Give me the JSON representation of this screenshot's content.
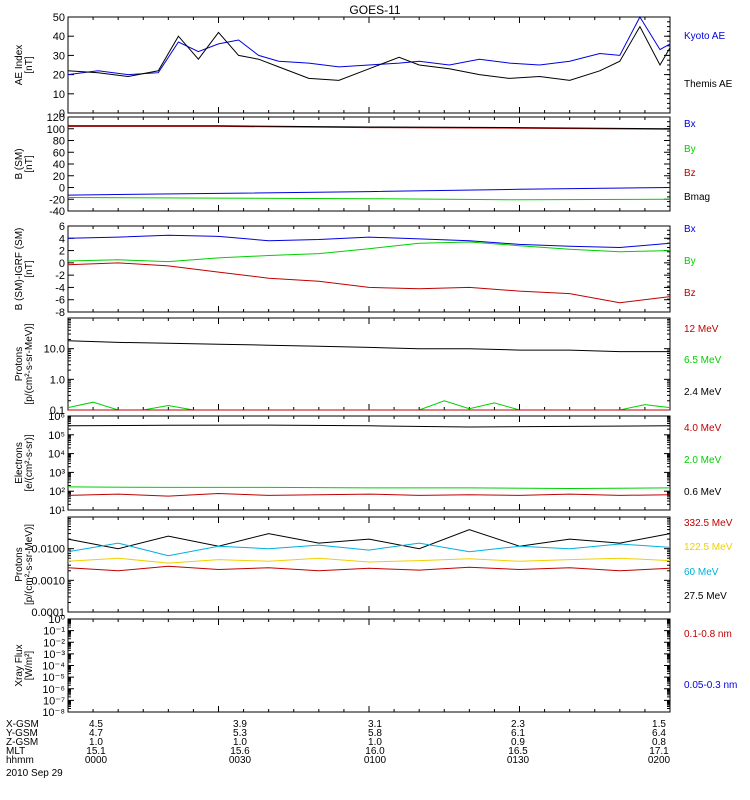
{
  "title": "GOES-11",
  "colors": {
    "black": "#000000",
    "blue": "#0000e0",
    "green": "#00d000",
    "red": "#c00000",
    "cyan": "#00b0e0",
    "yellow": "#f0d000"
  },
  "chart_data": [
    {
      "type": "line",
      "ylabel": [
        "AE Index",
        "[nT]"
      ],
      "ylim": [
        0,
        50
      ],
      "yticks": [
        "0",
        "10",
        "20",
        "30",
        "40",
        "50"
      ],
      "legend": [
        {
          "label": "Kyoto AE",
          "color": "blue"
        },
        {
          "label": "Themis AE",
          "color": "black"
        }
      ],
      "series": [
        {
          "name": "Kyoto AE",
          "color": "blue",
          "x": [
            0,
            6,
            12,
            18,
            22,
            26,
            30,
            34,
            38,
            42,
            48,
            54,
            60,
            66,
            70,
            76,
            82,
            88,
            94,
            100,
            106,
            110,
            114,
            118,
            120
          ],
          "y": [
            20,
            22,
            20,
            21,
            37,
            32,
            36,
            38,
            30,
            27,
            26,
            24,
            25,
            26,
            27,
            25,
            28,
            26,
            25,
            27,
            31,
            30,
            50,
            33,
            36
          ]
        },
        {
          "name": "Themis AE",
          "color": "black",
          "x": [
            0,
            6,
            12,
            18,
            22,
            26,
            30,
            34,
            38,
            42,
            48,
            54,
            60,
            66,
            70,
            76,
            82,
            88,
            94,
            100,
            106,
            110,
            114,
            118,
            120
          ],
          "y": [
            22,
            21,
            19,
            22,
            40,
            28,
            42,
            30,
            28,
            24,
            18,
            17,
            23,
            29,
            25,
            23,
            20,
            18,
            19,
            17,
            22,
            27,
            45,
            25,
            34
          ]
        }
      ]
    },
    {
      "type": "line",
      "ylabel": [
        "B (SM)",
        "[nT]"
      ],
      "ylim": [
        -40,
        120
      ],
      "yticks": [
        "-40",
        "-20",
        "0",
        "20",
        "40",
        "60",
        "80",
        "100",
        "120"
      ],
      "legend": [
        {
          "label": "Bx",
          "color": "blue"
        },
        {
          "label": "By",
          "color": "green"
        },
        {
          "label": "Bz",
          "color": "red"
        },
        {
          "label": "Bmag",
          "color": "black"
        }
      ],
      "series": [
        {
          "name": "Bx",
          "color": "blue",
          "x": [
            0,
            30,
            60,
            90,
            120
          ],
          "y": [
            -13,
            -10,
            -7,
            -3,
            0
          ]
        },
        {
          "name": "By",
          "color": "green",
          "x": [
            0,
            30,
            60,
            90,
            120
          ],
          "y": [
            -17,
            -18,
            -19,
            -21,
            -20
          ]
        },
        {
          "name": "Bz",
          "color": "red",
          "x": [
            0,
            30,
            60,
            90,
            120
          ],
          "y": [
            104,
            104,
            102,
            101,
            99
          ]
        },
        {
          "name": "Bmag",
          "color": "black",
          "x": [
            0,
            30,
            60,
            90,
            120
          ],
          "y": [
            105,
            105,
            103,
            102,
            100
          ]
        }
      ]
    },
    {
      "type": "line",
      "ylabel": [
        "B (SM)-IGRF (SM)",
        "[nT]"
      ],
      "ylim": [
        -8,
        6
      ],
      "yticks": [
        "-8",
        "-6",
        "-4",
        "-2",
        "0",
        "2",
        "4",
        "6"
      ],
      "legend": [
        {
          "label": "Bx",
          "color": "blue"
        },
        {
          "label": "By",
          "color": "green"
        },
        {
          "label": "Bz",
          "color": "red"
        }
      ],
      "series": [
        {
          "name": "Bx",
          "color": "blue",
          "x": [
            0,
            10,
            20,
            30,
            40,
            50,
            60,
            70,
            80,
            90,
            100,
            110,
            120
          ],
          "y": [
            4,
            4.2,
            4.5,
            4.3,
            3.6,
            3.8,
            4.2,
            3.9,
            3.6,
            3.0,
            2.7,
            2.5,
            3.2
          ]
        },
        {
          "name": "By",
          "color": "green",
          "x": [
            0,
            10,
            20,
            30,
            40,
            50,
            60,
            70,
            80,
            90,
            100,
            110,
            120
          ],
          "y": [
            0.3,
            0.5,
            0.2,
            0.8,
            1.2,
            1.5,
            2.3,
            3.2,
            3.4,
            2.8,
            2.2,
            1.8,
            2.0
          ]
        },
        {
          "name": "Bz",
          "color": "red",
          "x": [
            0,
            10,
            20,
            30,
            40,
            50,
            60,
            70,
            80,
            90,
            100,
            110,
            120
          ],
          "y": [
            -0.3,
            0,
            -0.5,
            -1.5,
            -2.5,
            -3.0,
            -4.0,
            -4.2,
            -4.0,
            -4.6,
            -5.0,
            -6.5,
            -5.5
          ]
        }
      ]
    },
    {
      "type": "line",
      "yscale": "log",
      "ylabel": [
        "Protons",
        "[p/(cm²-s-sr-MeV)]"
      ],
      "ylim": [
        0.1,
        100
      ],
      "yticks": [
        "0.1",
        "1.0",
        "10.0"
      ],
      "legend": [
        {
          "label": "12 MeV",
          "color": "red"
        },
        {
          "label": "6.5 MeV",
          "color": "green"
        },
        {
          "label": "2.4 MeV",
          "color": "black"
        }
      ],
      "series": [
        {
          "name": "2.4 MeV",
          "color": "black",
          "x": [
            0,
            10,
            20,
            30,
            40,
            50,
            60,
            70,
            80,
            90,
            100,
            110,
            120
          ],
          "y": [
            18,
            16,
            15,
            14,
            13,
            12,
            11,
            10,
            10,
            9,
            9,
            8,
            8
          ]
        },
        {
          "name": "6.5 MeV",
          "color": "green",
          "x": [
            0,
            5,
            10,
            15,
            20,
            25,
            30,
            35,
            40,
            45,
            50,
            55,
            60,
            65,
            70,
            75,
            80,
            85,
            90,
            95,
            100,
            105,
            110,
            115,
            120
          ],
          "y": [
            0.12,
            0.18,
            0.1,
            0.1,
            0.14,
            0.1,
            0.1,
            0.1,
            0.1,
            0.1,
            0.1,
            0.1,
            0.1,
            0.1,
            0.1,
            0.2,
            0.11,
            0.17,
            0.1,
            0.1,
            0.1,
            0.1,
            0.1,
            0.15,
            0.12
          ]
        },
        {
          "name": "12 MeV",
          "color": "red",
          "x": [
            0,
            20,
            40,
            60,
            80,
            100,
            120
          ],
          "y": [
            0.1,
            0.1,
            0.1,
            0.1,
            0.1,
            0.1,
            0.1
          ]
        }
      ]
    },
    {
      "type": "line",
      "yscale": "log",
      "ylabel": [
        "Electrons",
        "[e/(cm²-s-sr)]"
      ],
      "ylim": [
        10,
        1000000
      ],
      "yticks": [
        "10¹",
        "10²",
        "10³",
        "10⁴",
        "10⁵",
        "10⁶"
      ],
      "legend": [
        {
          "label": "4.0 MeV",
          "color": "red"
        },
        {
          "label": "2.0 MeV",
          "color": "green"
        },
        {
          "label": "0.6 MeV",
          "color": "black"
        }
      ],
      "series": [
        {
          "name": "0.6 MeV",
          "color": "black",
          "x": [
            0,
            20,
            40,
            60,
            80,
            100,
            120
          ],
          "y": [
            300000,
            320000,
            330000,
            300000,
            260000,
            280000,
            300000
          ]
        },
        {
          "name": "2.0 MeV",
          "color": "green",
          "x": [
            0,
            20,
            40,
            60,
            80,
            100,
            120
          ],
          "y": [
            170,
            160,
            160,
            150,
            150,
            140,
            150
          ]
        },
        {
          "name": "4.0 MeV",
          "color": "red",
          "x": [
            0,
            10,
            20,
            30,
            40,
            50,
            60,
            70,
            80,
            90,
            100,
            110,
            120
          ],
          "y": [
            60,
            70,
            55,
            75,
            60,
            65,
            70,
            60,
            65,
            60,
            70,
            60,
            65
          ]
        }
      ]
    },
    {
      "type": "line",
      "yscale": "log",
      "ylabel": [
        "Protons",
        "[p/(cm²-s-sr-MeV)]"
      ],
      "ylim": [
        0.0001,
        0.1
      ],
      "yticks": [
        "0.0001",
        "0.0010",
        "0.0100"
      ],
      "legend": [
        {
          "label": "332.5 MeV",
          "color": "red"
        },
        {
          "label": "122.5 MeV",
          "color": "yellow"
        },
        {
          "label": "60 MeV",
          "color": "cyan"
        },
        {
          "label": "27.5 MeV",
          "color": "black"
        }
      ],
      "series": [
        {
          "name": "27.5 MeV",
          "color": "black",
          "x": [
            0,
            10,
            20,
            30,
            40,
            50,
            60,
            70,
            80,
            90,
            100,
            110,
            120
          ],
          "y": [
            0.02,
            0.01,
            0.025,
            0.012,
            0.03,
            0.015,
            0.02,
            0.01,
            0.04,
            0.012,
            0.02,
            0.015,
            0.03
          ]
        },
        {
          "name": "60 MeV",
          "color": "cyan",
          "x": [
            0,
            10,
            20,
            30,
            40,
            50,
            60,
            70,
            80,
            90,
            100,
            110,
            120
          ],
          "y": [
            0.008,
            0.015,
            0.006,
            0.012,
            0.01,
            0.013,
            0.009,
            0.015,
            0.008,
            0.012,
            0.01,
            0.014,
            0.011
          ]
        },
        {
          "name": "122.5 MeV",
          "color": "yellow",
          "x": [
            0,
            10,
            20,
            30,
            40,
            50,
            60,
            70,
            80,
            90,
            100,
            110,
            120
          ],
          "y": [
            0.004,
            0.005,
            0.0035,
            0.0045,
            0.004,
            0.005,
            0.0038,
            0.0042,
            0.0048,
            0.004,
            0.0045,
            0.005,
            0.0042
          ]
        },
        {
          "name": "332.5 MeV",
          "color": "red",
          "x": [
            0,
            10,
            20,
            30,
            40,
            50,
            60,
            70,
            80,
            90,
            100,
            110,
            120
          ],
          "y": [
            0.0025,
            0.002,
            0.0028,
            0.0022,
            0.0025,
            0.002,
            0.0024,
            0.0021,
            0.0026,
            0.0022,
            0.0025,
            0.002,
            0.0024
          ]
        }
      ]
    },
    {
      "type": "line",
      "yscale": "log",
      "ylabel": [
        "Xray Flux",
        "[W/m²]"
      ],
      "ylim": [
        1e-08,
        1
      ],
      "yticks": [
        "10⁻⁸",
        "10⁻⁷",
        "10⁻⁶",
        "10⁻⁵",
        "10⁻⁴",
        "10⁻³",
        "10⁻²",
        "10⁻¹",
        "10⁰"
      ],
      "legend": [
        {
          "label": "0.1-0.8 nm",
          "color": "red"
        },
        {
          "label": "0.05-0.3 nm",
          "color": "blue"
        }
      ],
      "series": []
    }
  ],
  "footer": {
    "labels": [
      "X-GSM",
      "Y-GSM",
      "Z-GSM",
      "MLT",
      "hhmm"
    ],
    "date": "2010 Sep 29",
    "columns": [
      [
        "4.5",
        "4.7",
        "1.0",
        "15.1",
        "0000"
      ],
      [
        "3.9",
        "5.3",
        "1.0",
        "15.6",
        "0030"
      ],
      [
        "3.1",
        "5.8",
        "1.0",
        "16.0",
        "0100"
      ],
      [
        "2.3",
        "6.1",
        "0.9",
        "16.5",
        "0130"
      ],
      [
        "1.5",
        "6.4",
        "0.8",
        "17.1",
        "0200"
      ]
    ]
  }
}
